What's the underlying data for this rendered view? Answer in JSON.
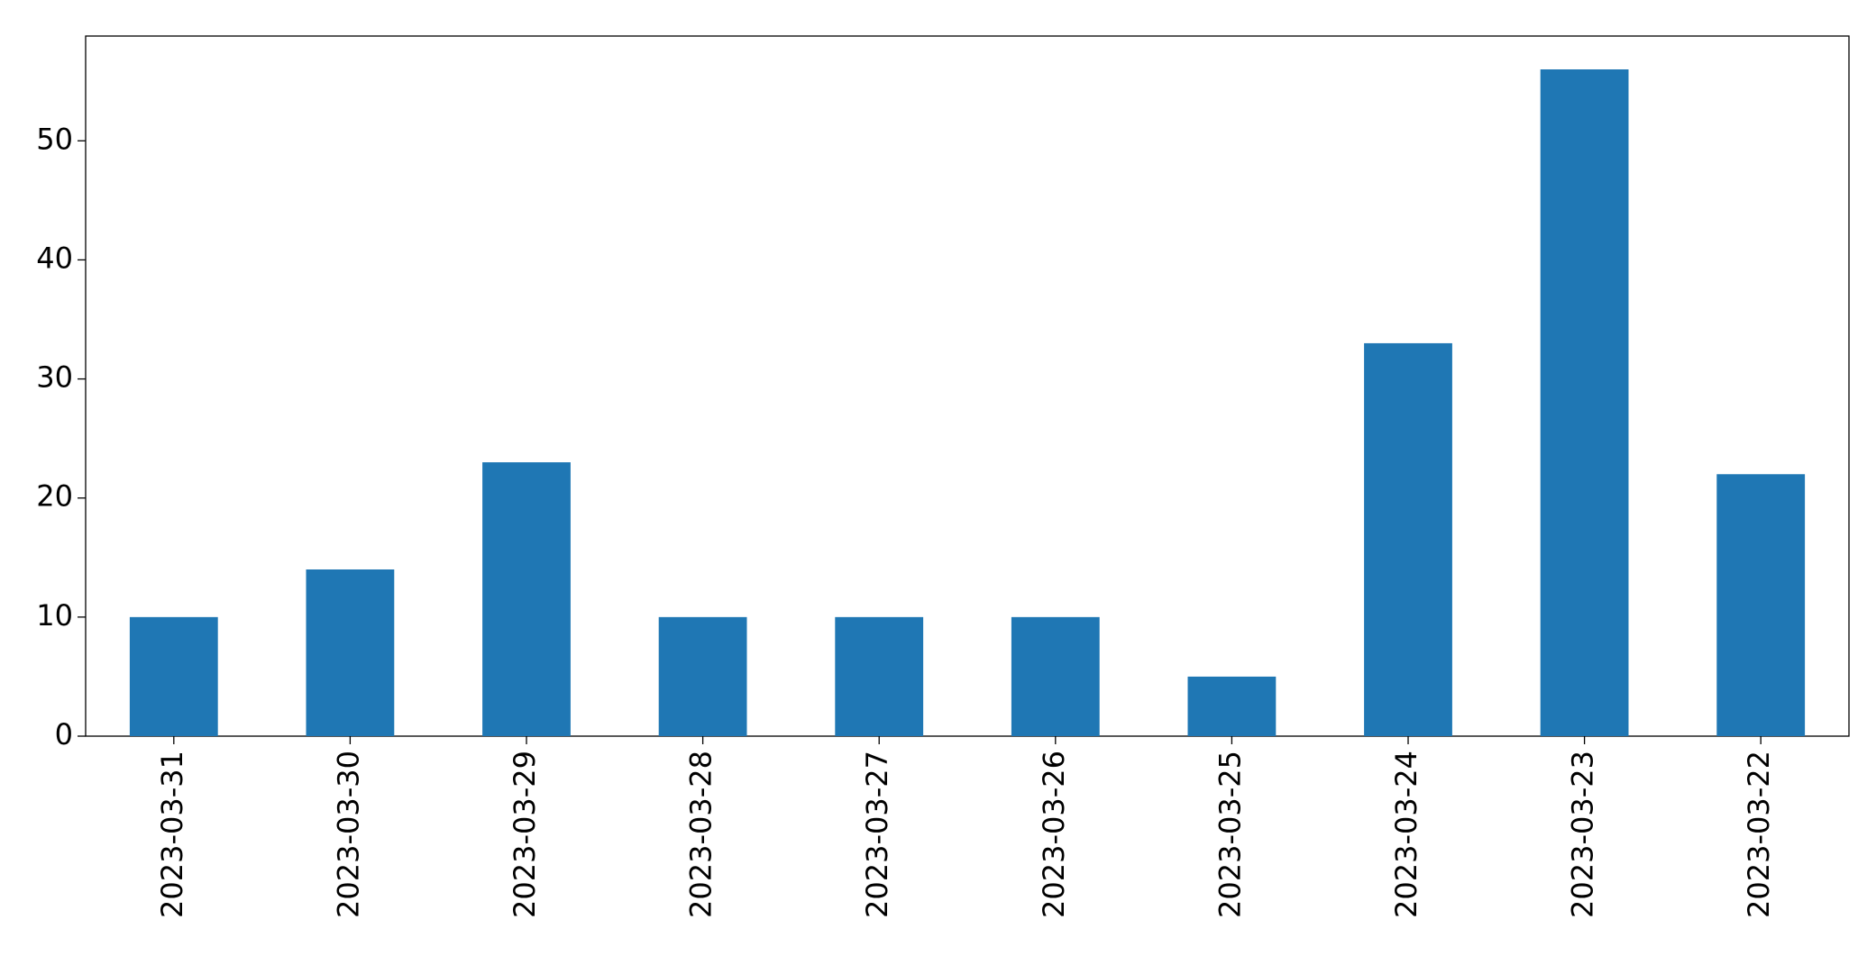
{
  "chart_data": {
    "type": "bar",
    "categories": [
      "2023-03-31",
      "2023-03-30",
      "2023-03-29",
      "2023-03-28",
      "2023-03-27",
      "2023-03-26",
      "2023-03-25",
      "2023-03-24",
      "2023-03-23",
      "2023-03-22"
    ],
    "values": [
      10,
      14,
      23,
      10,
      10,
      10,
      5,
      33,
      56,
      22
    ],
    "color": "#1f77b4",
    "ylim": [
      0,
      58.8
    ],
    "yticks": [
      0,
      10,
      20,
      30,
      40,
      50
    ],
    "grid": false
  }
}
